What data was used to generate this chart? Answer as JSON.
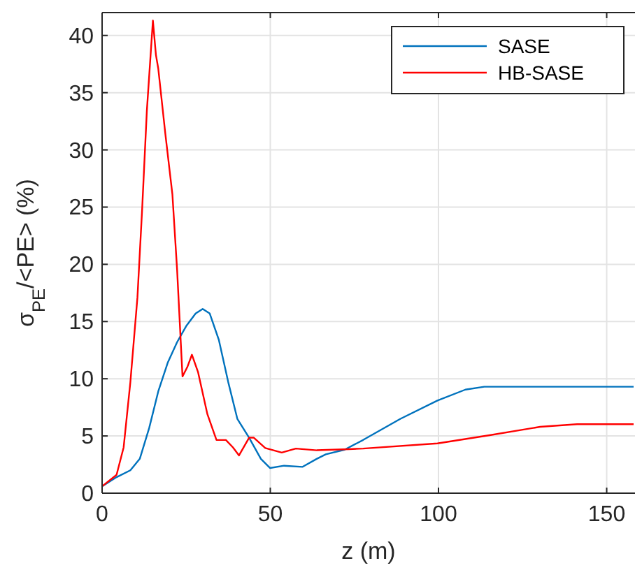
{
  "chart_data": {
    "type": "line",
    "xlabel": "z (m)",
    "ylabel": "σ$_{PE}$/<PE> (%)",
    "xlim": [
      0,
      158
    ],
    "xticks": [
      0,
      50,
      100,
      150
    ],
    "ylim": [
      0,
      42
    ],
    "yticks": [
      0,
      5,
      10,
      15,
      20,
      25,
      30,
      35,
      40
    ],
    "grid": true,
    "legend": "top right",
    "line_style": "solid",
    "marker": "none",
    "series": [
      {
        "name": "SASE",
        "color": "#0072bd",
        "x": [
          0,
          4.3,
          8.4,
          11.2,
          14,
          16.7,
          19.5,
          22.3,
          25,
          27.8,
          29.9,
          32,
          34.7,
          37.5,
          40.2,
          43.7,
          47.2,
          49.9,
          54.1,
          59.6,
          63.8,
          66.5,
          72.1,
          77.6,
          88.7,
          99.7,
          108,
          113.6,
          158
        ],
        "values": [
          0.6,
          1.4,
          2,
          3,
          5.7,
          8.9,
          11.4,
          13.2,
          14.6,
          15.7,
          16.1,
          15.7,
          13.4,
          9.7,
          6.5,
          4.85,
          3,
          2.2,
          2.4,
          2.3,
          3,
          3.4,
          3.8,
          4.65,
          6.5,
          8.1,
          9.05,
          9.3,
          9.3
        ]
      },
      {
        "name": "HB-SASE",
        "color": "#ff0000",
        "x": [
          0,
          4.3,
          6.4,
          8.4,
          10.5,
          11.9,
          13.3,
          15.1,
          16,
          16.7,
          18.8,
          20.9,
          22.3,
          23.9,
          25.3,
          26.7,
          28.5,
          31.3,
          34,
          36.8,
          38.9,
          40.7,
          43.7,
          45.1,
          48.5,
          53.4,
          57.6,
          63.8,
          73.4,
          77.6,
          99.7,
          114.9,
          130.2,
          141.2,
          158
        ],
        "values": [
          0.6,
          1.6,
          4,
          9.7,
          17.1,
          24.8,
          33.4,
          41.3,
          38.3,
          37.1,
          31.4,
          26.1,
          19.5,
          10.2,
          11,
          12.1,
          10.6,
          6.9,
          4.65,
          4.65,
          4,
          3.3,
          4.85,
          4.85,
          3.95,
          3.55,
          3.9,
          3.75,
          3.85,
          3.9,
          4.35,
          5.05,
          5.8,
          6.03,
          6.03
        ]
      }
    ]
  }
}
